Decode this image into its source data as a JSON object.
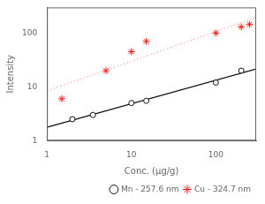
{
  "chart_data": {
    "type": "scatter",
    "xlabel": "Conc. (μg/g)",
    "ylabel": "Intensity",
    "log": true,
    "xlim": [
      1,
      300
    ],
    "ylim": [
      1,
      300
    ],
    "xticks": [
      1,
      10,
      100
    ],
    "yticks": [
      1,
      10,
      100
    ],
    "grid": false,
    "legend": "lower right",
    "series": [
      {
        "type": "line",
        "color": "#111111",
        "line_style": "solid",
        "x": [
          1,
          300
        ],
        "values": [
          1.767,
          21.56
        ]
      },
      {
        "type": "line",
        "color": "#ffaaaa",
        "line_style": "dotted",
        "x": [
          1,
          300
        ],
        "values": [
          8.422,
          195.4
        ]
      },
      {
        "name": "Mn - 257.6 nm",
        "type": "scatter",
        "marker": "circle",
        "color": "#111111",
        "x": [
          2.0,
          3.5,
          10.0,
          15.0,
          100.0,
          200.0
        ],
        "values": [
          2.5,
          3.0,
          5.0,
          5.5,
          12.0,
          20.0
        ]
      },
      {
        "name": "Cu - 324.7 nm",
        "type": "scatter",
        "marker": "star",
        "color": "#ee2222",
        "x": [
          1.5,
          5.0,
          10.0,
          15.0,
          100.0,
          200.0,
          250.0
        ],
        "values": [
          6.0,
          20.0,
          45.0,
          70.0,
          100.0,
          130.0,
          145.0
        ]
      }
    ]
  }
}
